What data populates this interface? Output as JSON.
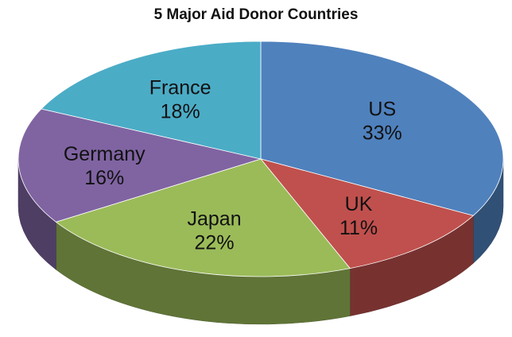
{
  "chart_data": {
    "type": "pie",
    "title": "5 Major Aid Donor Countries",
    "slices": [
      {
        "label": "US",
        "value": 33,
        "value_label": "33%",
        "color": "#4f81bd"
      },
      {
        "label": "UK",
        "value": 11,
        "value_label": "11%",
        "color": "#c0504d"
      },
      {
        "label": "Japan",
        "value": 22,
        "value_label": "22%",
        "color": "#9bbb59"
      },
      {
        "label": "Germany",
        "value": 16,
        "value_label": "16%",
        "color": "#8064a2"
      },
      {
        "label": "France",
        "value": 18,
        "value_label": "18%",
        "color": "#4bacc6"
      }
    ],
    "style": "3d-tilted"
  }
}
